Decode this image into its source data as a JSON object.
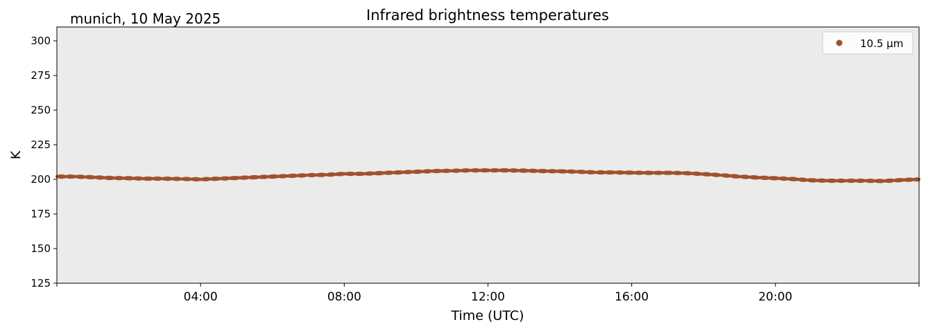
{
  "location_label": "munich, 10 May 2025",
  "chart_data": {
    "type": "scatter",
    "title": "Infrared brightness temperatures",
    "xlabel": "Time (UTC)",
    "ylabel": "K",
    "x_unit": "hours UTC",
    "xlim": [
      0,
      24
    ],
    "ylim": [
      125,
      310
    ],
    "x_tick_values": [
      4,
      8,
      12,
      16,
      20
    ],
    "x_tick_labels": [
      "04:00",
      "08:00",
      "12:00",
      "16:00",
      "20:00"
    ],
    "y_ticks": [
      125,
      150,
      175,
      200,
      225,
      250,
      275,
      300
    ],
    "grid": false,
    "background": "#ebebeb",
    "legend_position": "top-right",
    "series": [
      {
        "name": "10.5 µm",
        "color": "#a0522d",
        "x": [
          0,
          0.5,
          1,
          1.5,
          2,
          2.5,
          3,
          3.5,
          4,
          4.5,
          5,
          5.5,
          6,
          6.5,
          7,
          7.5,
          8,
          8.5,
          9,
          9.5,
          10,
          10.5,
          11,
          11.5,
          12,
          12.5,
          13,
          13.5,
          14,
          14.5,
          15,
          15.5,
          16,
          16.5,
          17,
          17.5,
          18,
          18.5,
          19,
          19.5,
          20,
          20.5,
          21,
          21.5,
          22,
          22.5,
          23,
          23.5,
          24
        ],
        "y": [
          202,
          202,
          201.5,
          201,
          200.8,
          200.5,
          200.5,
          200.3,
          200,
          200.5,
          201,
          201.5,
          202,
          202.5,
          203,
          203.3,
          204,
          204,
          204.5,
          205,
          205.5,
          206,
          206.2,
          206.5,
          206.5,
          206.5,
          206.3,
          206,
          205.8,
          205.5,
          205,
          205,
          204.8,
          204.7,
          204.7,
          204.5,
          203.8,
          203,
          202,
          201.3,
          200.8,
          200.2,
          199.3,
          199,
          199,
          199,
          198.8,
          199.5,
          200
        ]
      }
    ]
  }
}
